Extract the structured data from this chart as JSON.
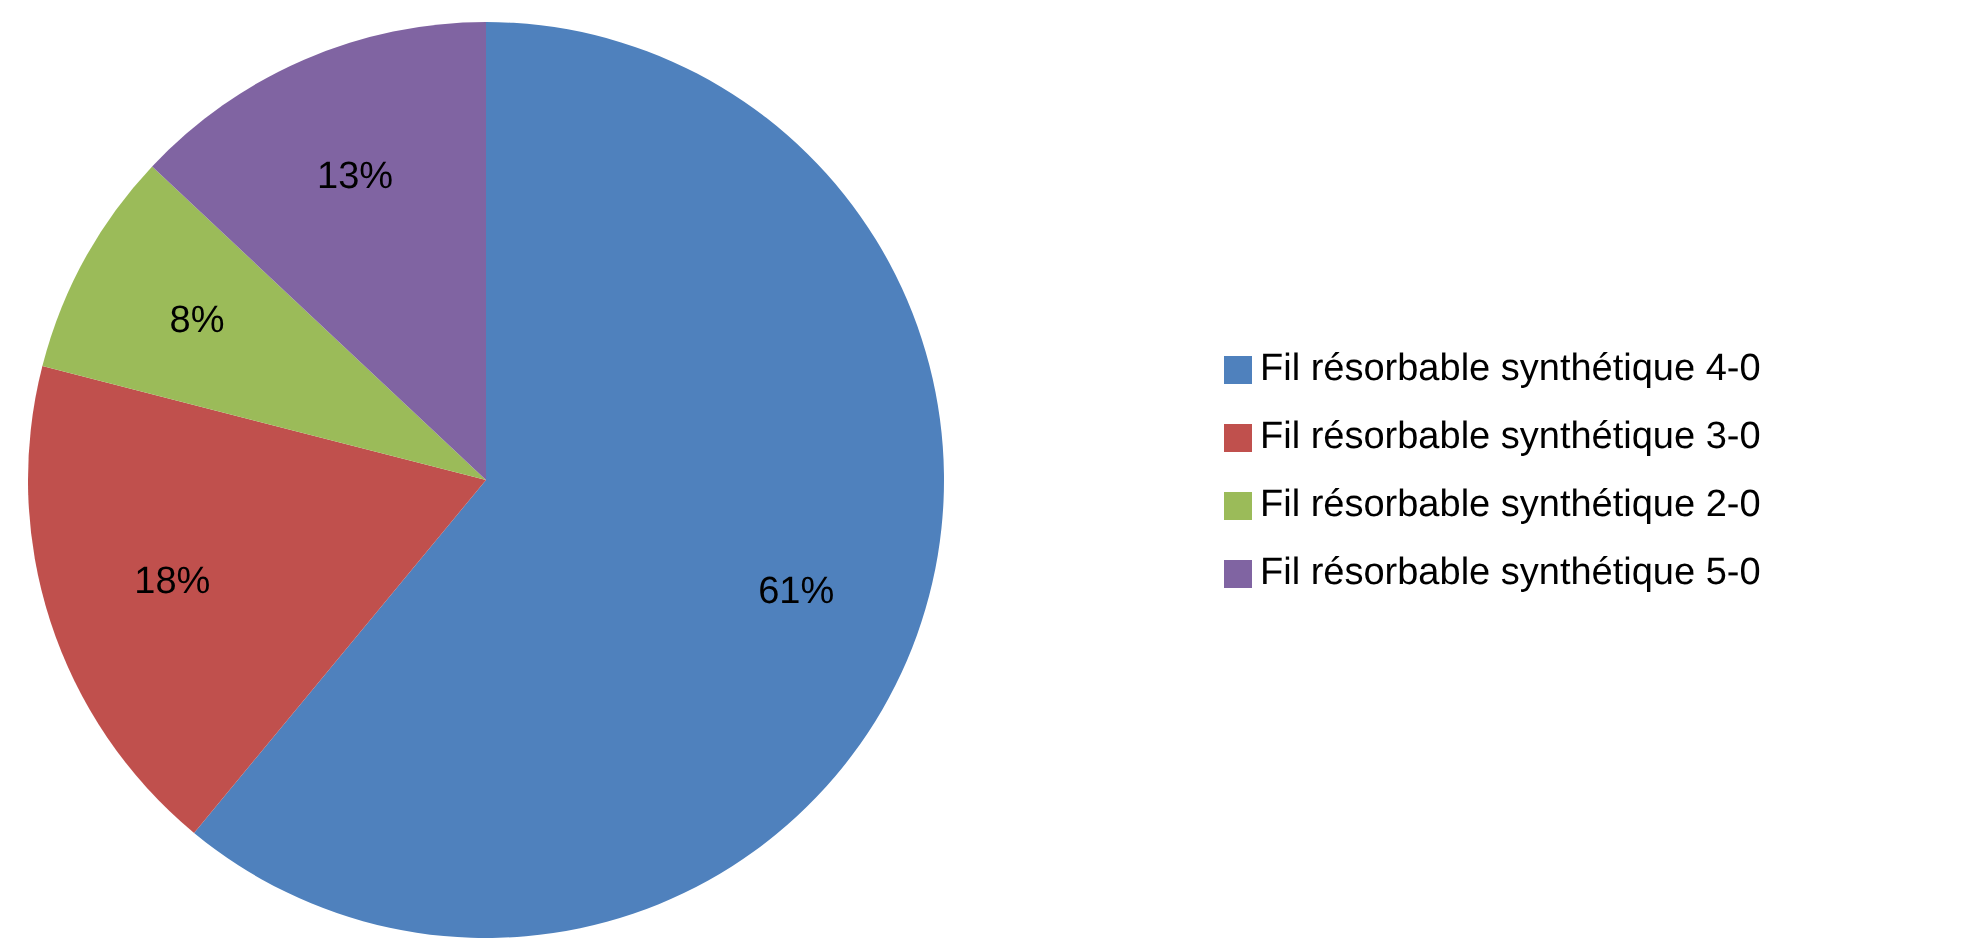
{
  "chart_data": {
    "type": "pie",
    "categories": [
      "Fil résorbable synthétique 4-0",
      "Fil résorbable synthétique 3-0",
      "Fil résorbable synthétique 2-0",
      "Fil résorbable synthétique 5-0"
    ],
    "values": [
      61,
      18,
      8,
      13
    ],
    "colors": [
      "#4f81bd",
      "#c0504d",
      "#9bbb59",
      "#8064a2"
    ],
    "value_labels": [
      "61%",
      "18%",
      "8%",
      "13%"
    ],
    "legend": "right"
  }
}
